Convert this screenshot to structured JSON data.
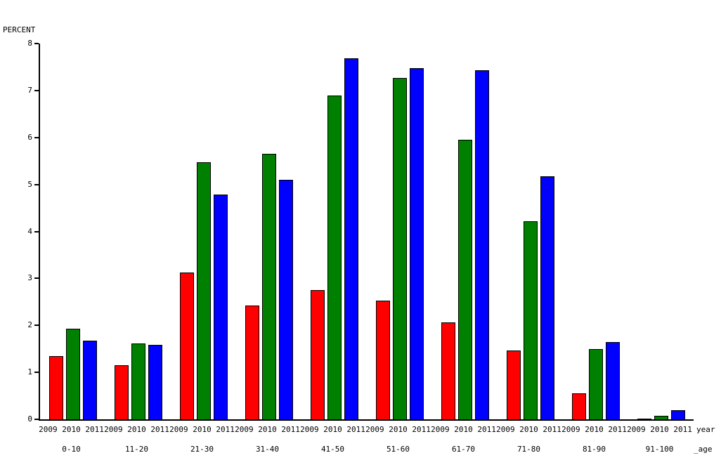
{
  "chart_data": {
    "type": "bar",
    "title": "",
    "ylabel": "PERCENT",
    "xlabel": "",
    "ylim": [
      0,
      8
    ],
    "ytick_step": 1,
    "grid": false,
    "legend_position": "none",
    "categories": [
      "0-10",
      "11-20",
      "21-30",
      "31-40",
      "41-50",
      "51-60",
      "61-70",
      "71-80",
      "81-90",
      "91-100"
    ],
    "series": [
      {
        "name": "2009",
        "color": "#ff0000",
        "values": [
          1.35,
          1.15,
          3.12,
          2.43,
          2.75,
          2.52,
          2.06,
          1.47,
          0.55,
          0.02
        ]
      },
      {
        "name": "2010",
        "color": "#008000",
        "values": [
          1.93,
          1.62,
          5.48,
          5.65,
          6.9,
          7.27,
          5.95,
          4.22,
          1.49,
          0.07
        ]
      },
      {
        "name": "2011",
        "color": "#0000ff",
        "values": [
          1.67,
          1.58,
          4.78,
          5.1,
          7.68,
          7.48,
          7.43,
          5.17,
          1.65,
          0.19
        ]
      }
    ],
    "group_axis_label": "year",
    "category_axis_label": "_age",
    "bar_border_color": "#000000",
    "axis_color": "#000000"
  }
}
